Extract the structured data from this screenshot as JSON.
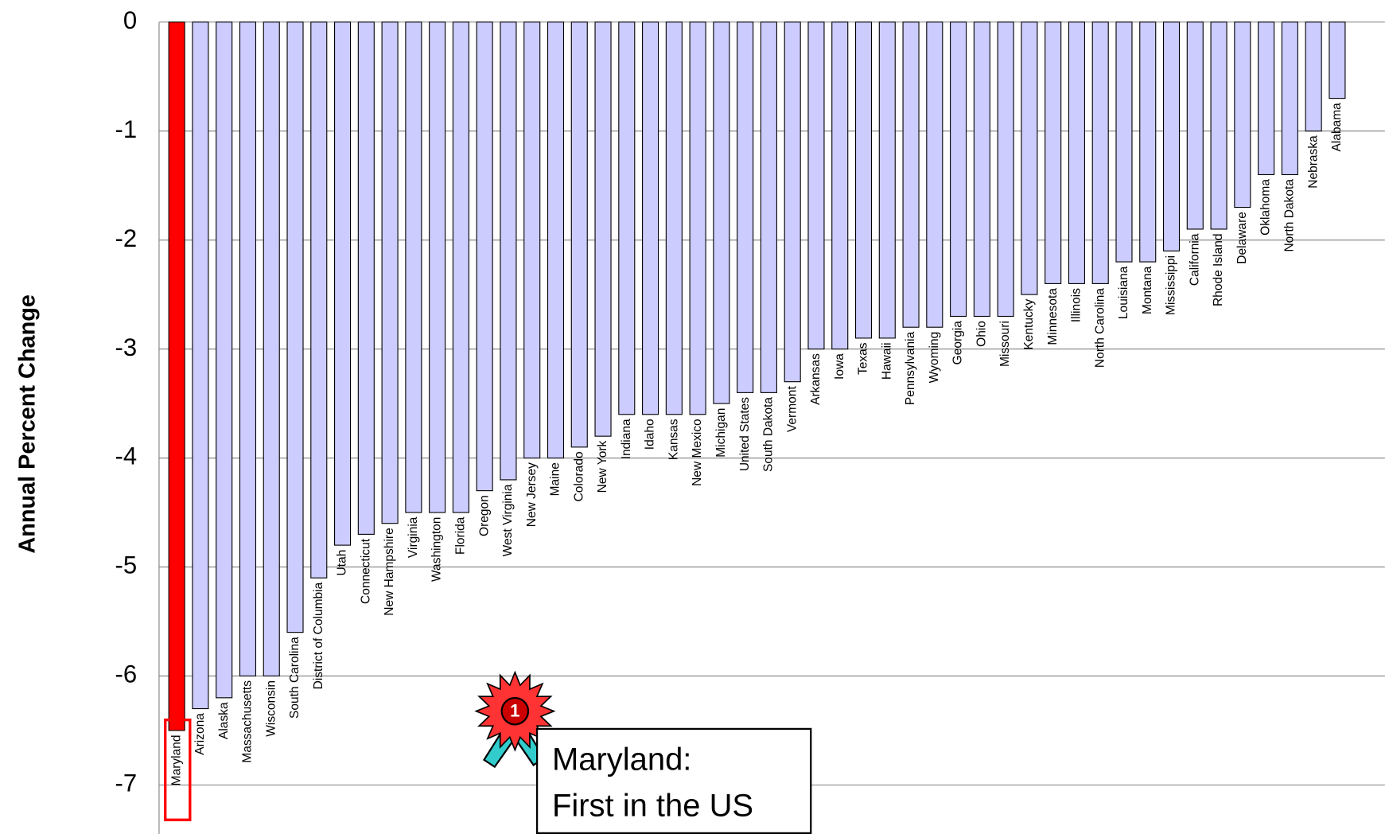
{
  "chart_data": {
    "type": "bar",
    "y_axis_label": "Annual Percent Change",
    "categories": [
      "Maryland",
      "Arizona",
      "Alaska",
      "Massachusetts",
      "Wisconsin",
      "South Carolina",
      "District of Columbia",
      "Utah",
      "Connecticut",
      "New Hampshire",
      "Virginia",
      "Washington",
      "Florida",
      "Oregon",
      "West Virginia",
      "New Jersey",
      "Maine",
      "Colorado",
      "New York",
      "Indiana",
      "Idaho",
      "Kansas",
      "New Mexico",
      "Michigan",
      "United States",
      "South Dakota",
      "Vermont",
      "Arkansas",
      "Iowa",
      "Texas",
      "Hawaii",
      "Pennsylvania",
      "Wyoming",
      "Georgia",
      "Ohio",
      "Missouri",
      "Kentucky",
      "Minnesota",
      "Illinois",
      "North Carolina",
      "Louisiana",
      "Montana",
      "Mississippi",
      "California",
      "Rhode Island",
      "Delaware",
      "Oklahoma",
      "North Dakota",
      "Nebraska",
      "Alabama"
    ],
    "values": [
      -6.5,
      -6.3,
      -6.2,
      -6.0,
      -6.0,
      -5.6,
      -5.1,
      -4.8,
      -4.7,
      -4.6,
      -4.5,
      -4.5,
      -4.5,
      -4.3,
      -4.2,
      -4.0,
      -4.0,
      -3.9,
      -3.8,
      -3.6,
      -3.6,
      -3.6,
      -3.6,
      -3.5,
      -3.4,
      -3.4,
      -3.3,
      -3.0,
      -3.0,
      -2.9,
      -2.9,
      -2.8,
      -2.8,
      -2.7,
      -2.7,
      -2.7,
      -2.5,
      -2.4,
      -2.4,
      -2.4,
      -2.2,
      -2.2,
      -2.1,
      -1.9,
      -1.9,
      -1.7,
      -1.4,
      -1.4,
      -1.0,
      -0.7
    ],
    "color": "#ccccff",
    "highlight": {
      "category": "Maryland",
      "color": "#ff0000"
    },
    "ylim": [
      -7.45,
      0
    ],
    "yticks": [
      0,
      -1,
      -2,
      -3,
      -4,
      -5,
      -6,
      -7
    ],
    "grid": true,
    "badge": "1",
    "annotation": [
      "Maryland:",
      "First in the US"
    ]
  }
}
